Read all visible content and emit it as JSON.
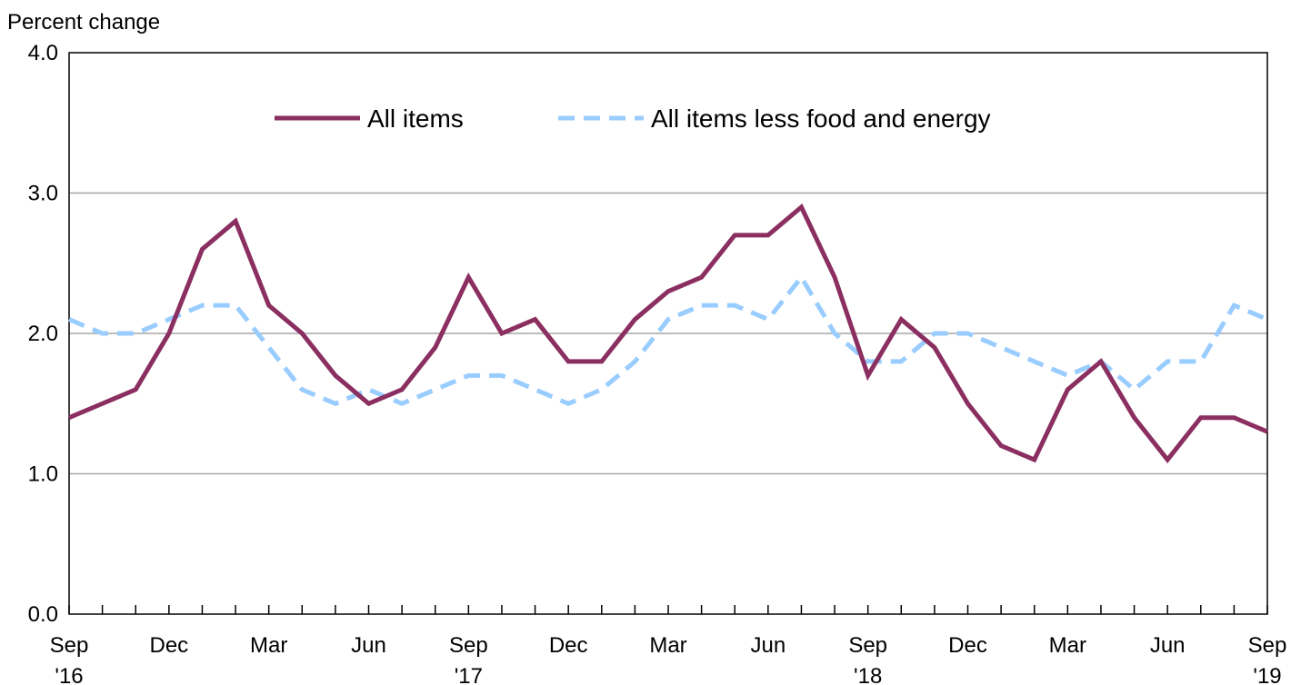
{
  "chart_data": {
    "type": "line",
    "ylabel": "Percent change",
    "ylim": [
      0,
      4
    ],
    "y_ticks": [
      "0.0",
      "1.0",
      "2.0",
      "3.0",
      "4.0"
    ],
    "x": [
      "Sep 2016",
      "Oct 2016",
      "Nov 2016",
      "Dec 2016",
      "Jan 2017",
      "Feb 2017",
      "Mar 2017",
      "Apr 2017",
      "May 2017",
      "Jun 2017",
      "Jul 2017",
      "Aug 2017",
      "Sep 2017",
      "Oct 2017",
      "Nov 2017",
      "Dec 2017",
      "Jan 2018",
      "Feb 2018",
      "Mar 2018",
      "Apr 2018",
      "May 2018",
      "Jun 2018",
      "Jul 2018",
      "Aug 2018",
      "Sep 2018",
      "Oct 2018",
      "Nov 2018",
      "Dec 2018",
      "Jan 2019",
      "Feb 2019",
      "Mar 2019",
      "Apr 2019",
      "May 2019",
      "Jun 2019",
      "Jul 2019",
      "Aug 2019",
      "Sep 2019"
    ],
    "x_tick_labels": [
      {
        "month": "Sep",
        "year": "'16"
      },
      {
        "month": "Dec",
        "year": ""
      },
      {
        "month": "Mar",
        "year": ""
      },
      {
        "month": "Jun",
        "year": ""
      },
      {
        "month": "Sep",
        "year": "'17"
      },
      {
        "month": "Dec",
        "year": ""
      },
      {
        "month": "Mar",
        "year": ""
      },
      {
        "month": "Jun",
        "year": ""
      },
      {
        "month": "Sep",
        "year": "'18"
      },
      {
        "month": "Dec",
        "year": ""
      },
      {
        "month": "Mar",
        "year": ""
      },
      {
        "month": "Jun",
        "year": ""
      },
      {
        "month": "Sep",
        "year": "'19"
      }
    ],
    "series": [
      {
        "name": "All items",
        "color": "#8B2F61",
        "style": "solid",
        "values": [
          1.4,
          1.5,
          1.6,
          2.0,
          2.6,
          2.8,
          2.2,
          2.0,
          1.7,
          1.5,
          1.6,
          1.9,
          2.4,
          2.0,
          2.1,
          1.8,
          1.8,
          2.1,
          2.3,
          2.4,
          2.7,
          2.7,
          2.9,
          2.4,
          1.7,
          2.1,
          1.9,
          1.5,
          1.2,
          1.1,
          1.6,
          1.8,
          1.4,
          1.1,
          1.4,
          1.4,
          1.3
        ]
      },
      {
        "name": "All items less food and energy",
        "color": "#99CCFF",
        "style": "dashed",
        "values": [
          2.1,
          2.0,
          2.0,
          2.1,
          2.2,
          2.2,
          1.9,
          1.6,
          1.5,
          1.6,
          1.5,
          1.6,
          1.7,
          1.7,
          1.6,
          1.5,
          1.6,
          1.8,
          2.1,
          2.2,
          2.2,
          2.1,
          2.4,
          2.0,
          1.8,
          1.8,
          2.0,
          2.0,
          1.9,
          1.8,
          1.7,
          1.8,
          1.6,
          1.8,
          1.8,
          2.2,
          2.1
        ]
      }
    ],
    "grid": true,
    "legend_position": "top-center"
  }
}
